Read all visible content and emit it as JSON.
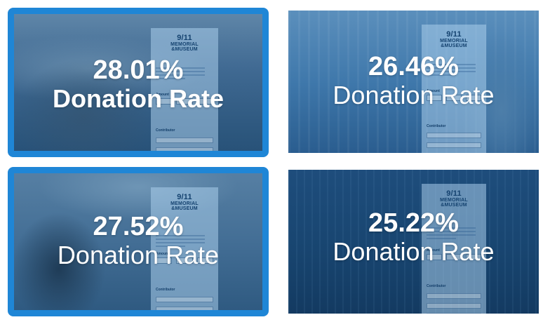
{
  "tiles": [
    {
      "rate": "28.01%",
      "label": "Donation Rate",
      "selected": true
    },
    {
      "rate": "26.46%",
      "label": "Donation Rate",
      "selected": false
    },
    {
      "rate": "27.52%",
      "label": "Donation Rate",
      "selected": true
    },
    {
      "rate": "25.22%",
      "label": "Donation Rate",
      "selected": false
    }
  ],
  "colors": {
    "accent": "#1f86d6",
    "overlay": "#2f6aa0"
  }
}
